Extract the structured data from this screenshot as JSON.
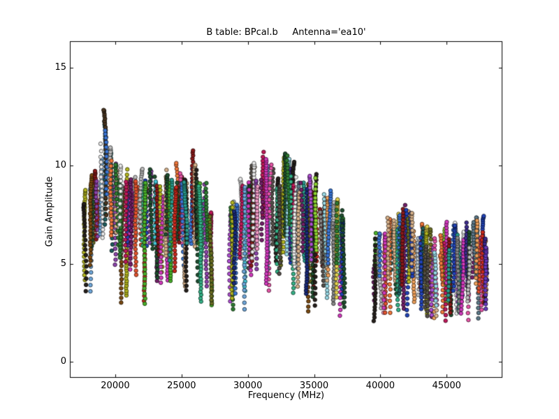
{
  "figure": {
    "background": "#ffffff",
    "frame_color": "#000000",
    "text_color": "#000000"
  },
  "chart_data": {
    "type": "scatter",
    "title": "B table: BPcal.b     Antenna='ea10'",
    "xlabel": "Frequency (MHz)",
    "ylabel": "Gain Amplitude",
    "xlim": [
      16627,
      49153
    ],
    "ylim": [
      -0.78,
      16.3
    ],
    "xticks": [
      20000,
      25000,
      30000,
      35000,
      40000,
      45000
    ],
    "yticks": [
      0,
      5,
      10,
      15
    ],
    "grid": false,
    "legend": null,
    "marker": {
      "shape": "circle",
      "radius_px": 2.7,
      "edge_darken": 0.38
    },
    "seed": 7,
    "palette": [
      "#cc2a1e",
      "#e8542e",
      "#f4793c",
      "#f2a25c",
      "#d9b38c",
      "#e8d44d",
      "#b5b820",
      "#6b6e23",
      "#8fd433",
      "#4bb52b",
      "#2e7d32",
      "#1f4f2f",
      "#36b58a",
      "#2a9d8f",
      "#1f5f5f",
      "#45c8d8",
      "#9adbe8",
      "#6fa8dc",
      "#3c78d8",
      "#2244bb",
      "#1a2a7a",
      "#3d2b8f",
      "#6a3bbf",
      "#8e44ad",
      "#b04fd4",
      "#d43bbf",
      "#e856a8",
      "#f29bc6",
      "#c2185b",
      "#8b1a1a",
      "#7a4a12",
      "#4a3520",
      "#26201c",
      "#55504a",
      "#8a8a8a",
      "#c0c0c0",
      "#ececec",
      "#b8c4cc",
      "#5d7a8a",
      "#74206a"
    ],
    "bands": [
      {
        "name": "band-1",
        "freq_min": 17800,
        "freq_max": 27250,
        "n_columns": 26,
        "chains_per_column_min": 2,
        "chains_per_column_max": 4,
        "envelope_top": [
          [
            17800,
            8.0
          ],
          [
            18200,
            9.2
          ],
          [
            18700,
            9.6
          ],
          [
            19100,
            12.0
          ],
          [
            19300,
            12.8
          ],
          [
            19600,
            10.4
          ],
          [
            20000,
            9.8
          ],
          [
            20600,
            9.2
          ],
          [
            21200,
            8.8
          ],
          [
            21900,
            9.4
          ],
          [
            22600,
            9.7
          ],
          [
            23300,
            9.0
          ],
          [
            24000,
            9.4
          ],
          [
            24700,
            9.6
          ],
          [
            25400,
            8.8
          ],
          [
            25900,
            10.2
          ],
          [
            26400,
            9.0
          ],
          [
            27000,
            8.2
          ],
          [
            27250,
            7.4
          ]
        ],
        "tail_min_amp": 2.4,
        "span_min": 2.5,
        "span_max": 5.5,
        "tail_prob": 0.17
      },
      {
        "name": "band-2",
        "freq_min": 28750,
        "freq_max": 37150,
        "n_columns": 26,
        "chains_per_column_min": 2,
        "chains_per_column_max": 4,
        "envelope_top": [
          [
            28750,
            7.6
          ],
          [
            29300,
            8.4
          ],
          [
            29900,
            9.0
          ],
          [
            30500,
            9.6
          ],
          [
            31100,
            10.0
          ],
          [
            31700,
            9.2
          ],
          [
            32300,
            8.8
          ],
          [
            33000,
            10.4
          ],
          [
            33600,
            9.2
          ],
          [
            34200,
            9.5
          ],
          [
            34800,
            9.0
          ],
          [
            35500,
            8.4
          ],
          [
            36100,
            8.0
          ],
          [
            36700,
            7.6
          ],
          [
            37150,
            7.0
          ]
        ],
        "tail_min_amp": 2.1,
        "span_min": 2.5,
        "span_max": 5.5,
        "tail_prob": 0.15
      },
      {
        "name": "band-3",
        "freq_min": 39650,
        "freq_max": 48050,
        "n_columns": 25,
        "chains_per_column_min": 2,
        "chains_per_column_max": 4,
        "envelope_top": [
          [
            39650,
            5.9
          ],
          [
            40200,
            6.6
          ],
          [
            40800,
            7.0
          ],
          [
            41500,
            7.2
          ],
          [
            42200,
            7.3
          ],
          [
            42900,
            6.5
          ],
          [
            43600,
            6.2
          ],
          [
            44300,
            6.0
          ],
          [
            45000,
            6.4
          ],
          [
            45700,
            6.6
          ],
          [
            46400,
            6.3
          ],
          [
            47100,
            6.6
          ],
          [
            47700,
            7.0
          ],
          [
            48050,
            5.6
          ]
        ],
        "tail_min_amp": 2.0,
        "span_min": 1.8,
        "span_max": 4.0,
        "tail_prob": 0.15
      }
    ]
  }
}
